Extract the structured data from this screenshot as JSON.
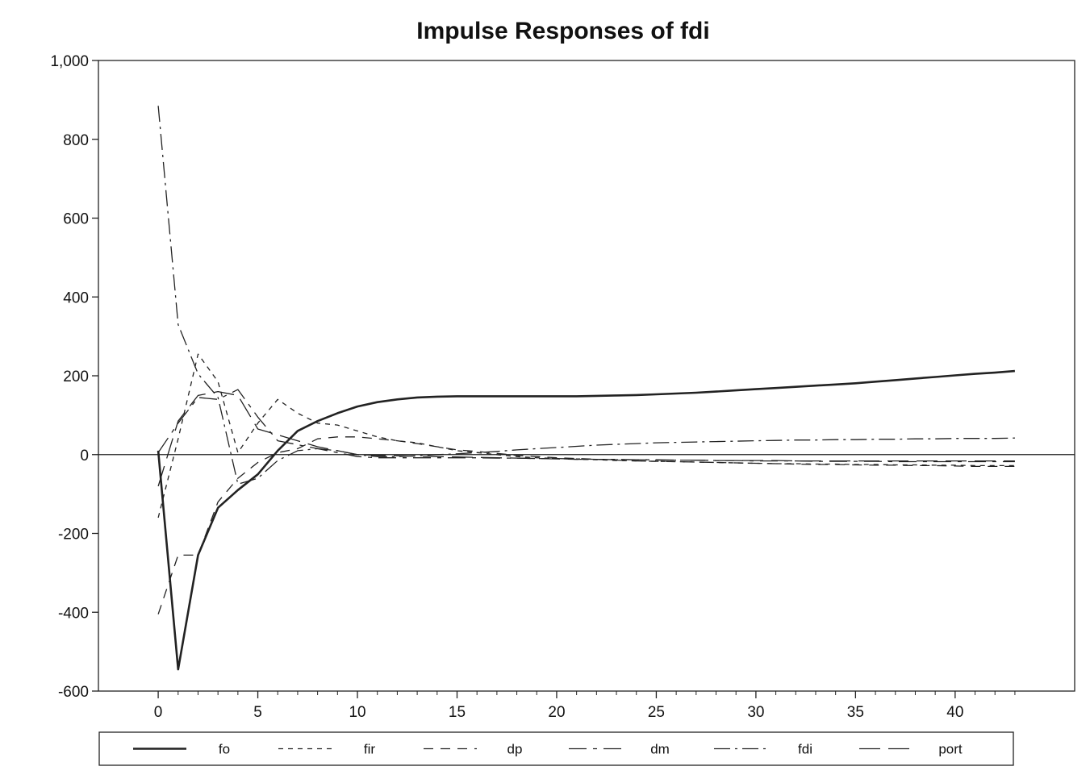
{
  "chart_data": {
    "type": "line",
    "title": "Impulse Responses of fdi",
    "xlabel": "",
    "ylabel": "",
    "xlim": [
      -3,
      46
    ],
    "ylim": [
      -600,
      1000
    ],
    "x_ticks": [
      0,
      5,
      10,
      15,
      20,
      25,
      30,
      35,
      40
    ],
    "y_ticks": [
      -600,
      -400,
      -200,
      0,
      200,
      400,
      600,
      800,
      1000
    ],
    "y_tick_labels": [
      "-600",
      "-400",
      "-200",
      "0",
      "200",
      "400",
      "600",
      "800",
      "1,000"
    ],
    "zero_line": true,
    "grid": false,
    "legend_position": "bottom",
    "x": [
      0,
      1,
      2,
      3,
      4,
      5,
      6,
      7,
      8,
      9,
      10,
      11,
      12,
      13,
      14,
      15,
      16,
      17,
      18,
      19,
      20,
      21,
      22,
      23,
      24,
      25,
      26,
      27,
      28,
      29,
      30,
      31,
      32,
      33,
      34,
      35,
      36,
      37,
      38,
      39,
      40,
      41,
      42,
      43
    ],
    "series": [
      {
        "name": "fo",
        "dash": "solid",
        "width": 2.6,
        "values": [
          10,
          -545,
          -255,
          -135,
          -90,
          -50,
          10,
          60,
          85,
          105,
          122,
          133,
          140,
          145,
          147,
          148,
          148,
          148,
          148,
          148,
          148,
          148,
          149,
          150,
          151,
          153,
          155,
          157,
          160,
          163,
          166,
          169,
          172,
          175,
          178,
          181,
          185,
          189,
          193,
          197,
          201,
          205,
          208,
          212
        ]
      },
      {
        "name": "fir",
        "dash": "6,6",
        "width": 1.3,
        "values": [
          -160,
          40,
          255,
          185,
          5,
          80,
          140,
          105,
          80,
          75,
          60,
          45,
          35,
          30,
          20,
          10,
          5,
          0,
          -5,
          -8,
          -10,
          -12,
          -13,
          -15,
          -16,
          -17,
          -18,
          -19,
          -20,
          -21,
          -22,
          -23,
          -23,
          -24,
          -24,
          -25,
          -25,
          -26,
          -26,
          -27,
          -27,
          -28,
          -28,
          -28
        ]
      },
      {
        "name": "dp",
        "dash": "12,9",
        "width": 1.3,
        "values": [
          -405,
          -255,
          -255,
          -120,
          -60,
          -20,
          5,
          15,
          40,
          45,
          45,
          40,
          35,
          28,
          20,
          12,
          8,
          3,
          -2,
          -5,
          -8,
          -10,
          -12,
          -14,
          -16,
          -17,
          -18,
          -19,
          -20,
          -21,
          -22,
          -23,
          -24,
          -25,
          -25,
          -26,
          -27,
          -27,
          -28,
          -28,
          -29,
          -30,
          -30,
          -30
        ]
      },
      {
        "name": "dm",
        "dash": "22,8,5,8",
        "width": 1.3,
        "values": [
          5,
          80,
          145,
          140,
          165,
          95,
          35,
          25,
          15,
          5,
          -5,
          -8,
          -8,
          -8,
          -8,
          -8,
          -8,
          -9,
          -9,
          -10,
          -10,
          -11,
          -12,
          -12,
          -13,
          -13,
          -14,
          -14,
          -15,
          -15,
          -16,
          -16,
          -16,
          -17,
          -17,
          -17,
          -17,
          -18,
          -18,
          -18,
          -18,
          -18,
          -18,
          -18
        ]
      },
      {
        "name": "fdi",
        "dash": "20,6,3,6",
        "width": 1.3,
        "values": [
          885,
          330,
          205,
          145,
          -75,
          -60,
          -15,
          10,
          15,
          10,
          0,
          -5,
          -5,
          -3,
          0,
          2,
          5,
          8,
          12,
          15,
          18,
          21,
          24,
          26,
          28,
          30,
          31,
          32,
          33,
          34,
          35,
          36,
          37,
          37,
          38,
          38,
          39,
          39,
          40,
          40,
          41,
          41,
          41,
          42
        ]
      },
      {
        "name": "port",
        "dash": "26,10",
        "width": 1.3,
        "values": [
          -80,
          85,
          150,
          160,
          150,
          65,
          50,
          35,
          20,
          10,
          0,
          -2,
          -3,
          -4,
          -5,
          -6,
          -7,
          -8,
          -9,
          -10,
          -11,
          -12,
          -12,
          -13,
          -13,
          -14,
          -14,
          -14,
          -15,
          -15,
          -15,
          -15,
          -16,
          -16,
          -16,
          -16,
          -16,
          -16,
          -16,
          -16,
          -16,
          -16,
          -16,
          -16
        ]
      }
    ]
  }
}
